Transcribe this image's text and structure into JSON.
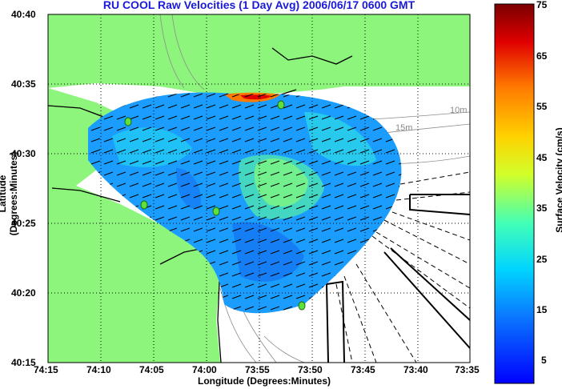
{
  "map": {
    "title": "RU COOL Raw Velocities (1 Day Avg) 2006/06/17 0600 GMT",
    "xlabel": "Longitude (Degrees:Minutes)",
    "ylabel": "Latitude (Degrees:Minutes)",
    "x_ticks": [
      "74:15",
      "74:10",
      "74:05",
      "74:00",
      "73:55",
      "73:50",
      "73:45",
      "73:40",
      "73:35"
    ],
    "y_ticks": [
      "40:40",
      "40:35",
      "40:30",
      "40:25",
      "40:20",
      "40:15"
    ],
    "depth_labels": [
      "10m",
      "15m"
    ],
    "colors": {
      "land": "#8df57c",
      "title": "#1a1ad8",
      "water": "#ffffff"
    }
  },
  "colorbar": {
    "label": "Surface Velocity (cm/s)",
    "ticks": [
      "75",
      "65",
      "55",
      "45",
      "35",
      "25",
      "15",
      "5"
    ],
    "range": [
      0,
      75
    ],
    "colormap": "jet"
  }
}
